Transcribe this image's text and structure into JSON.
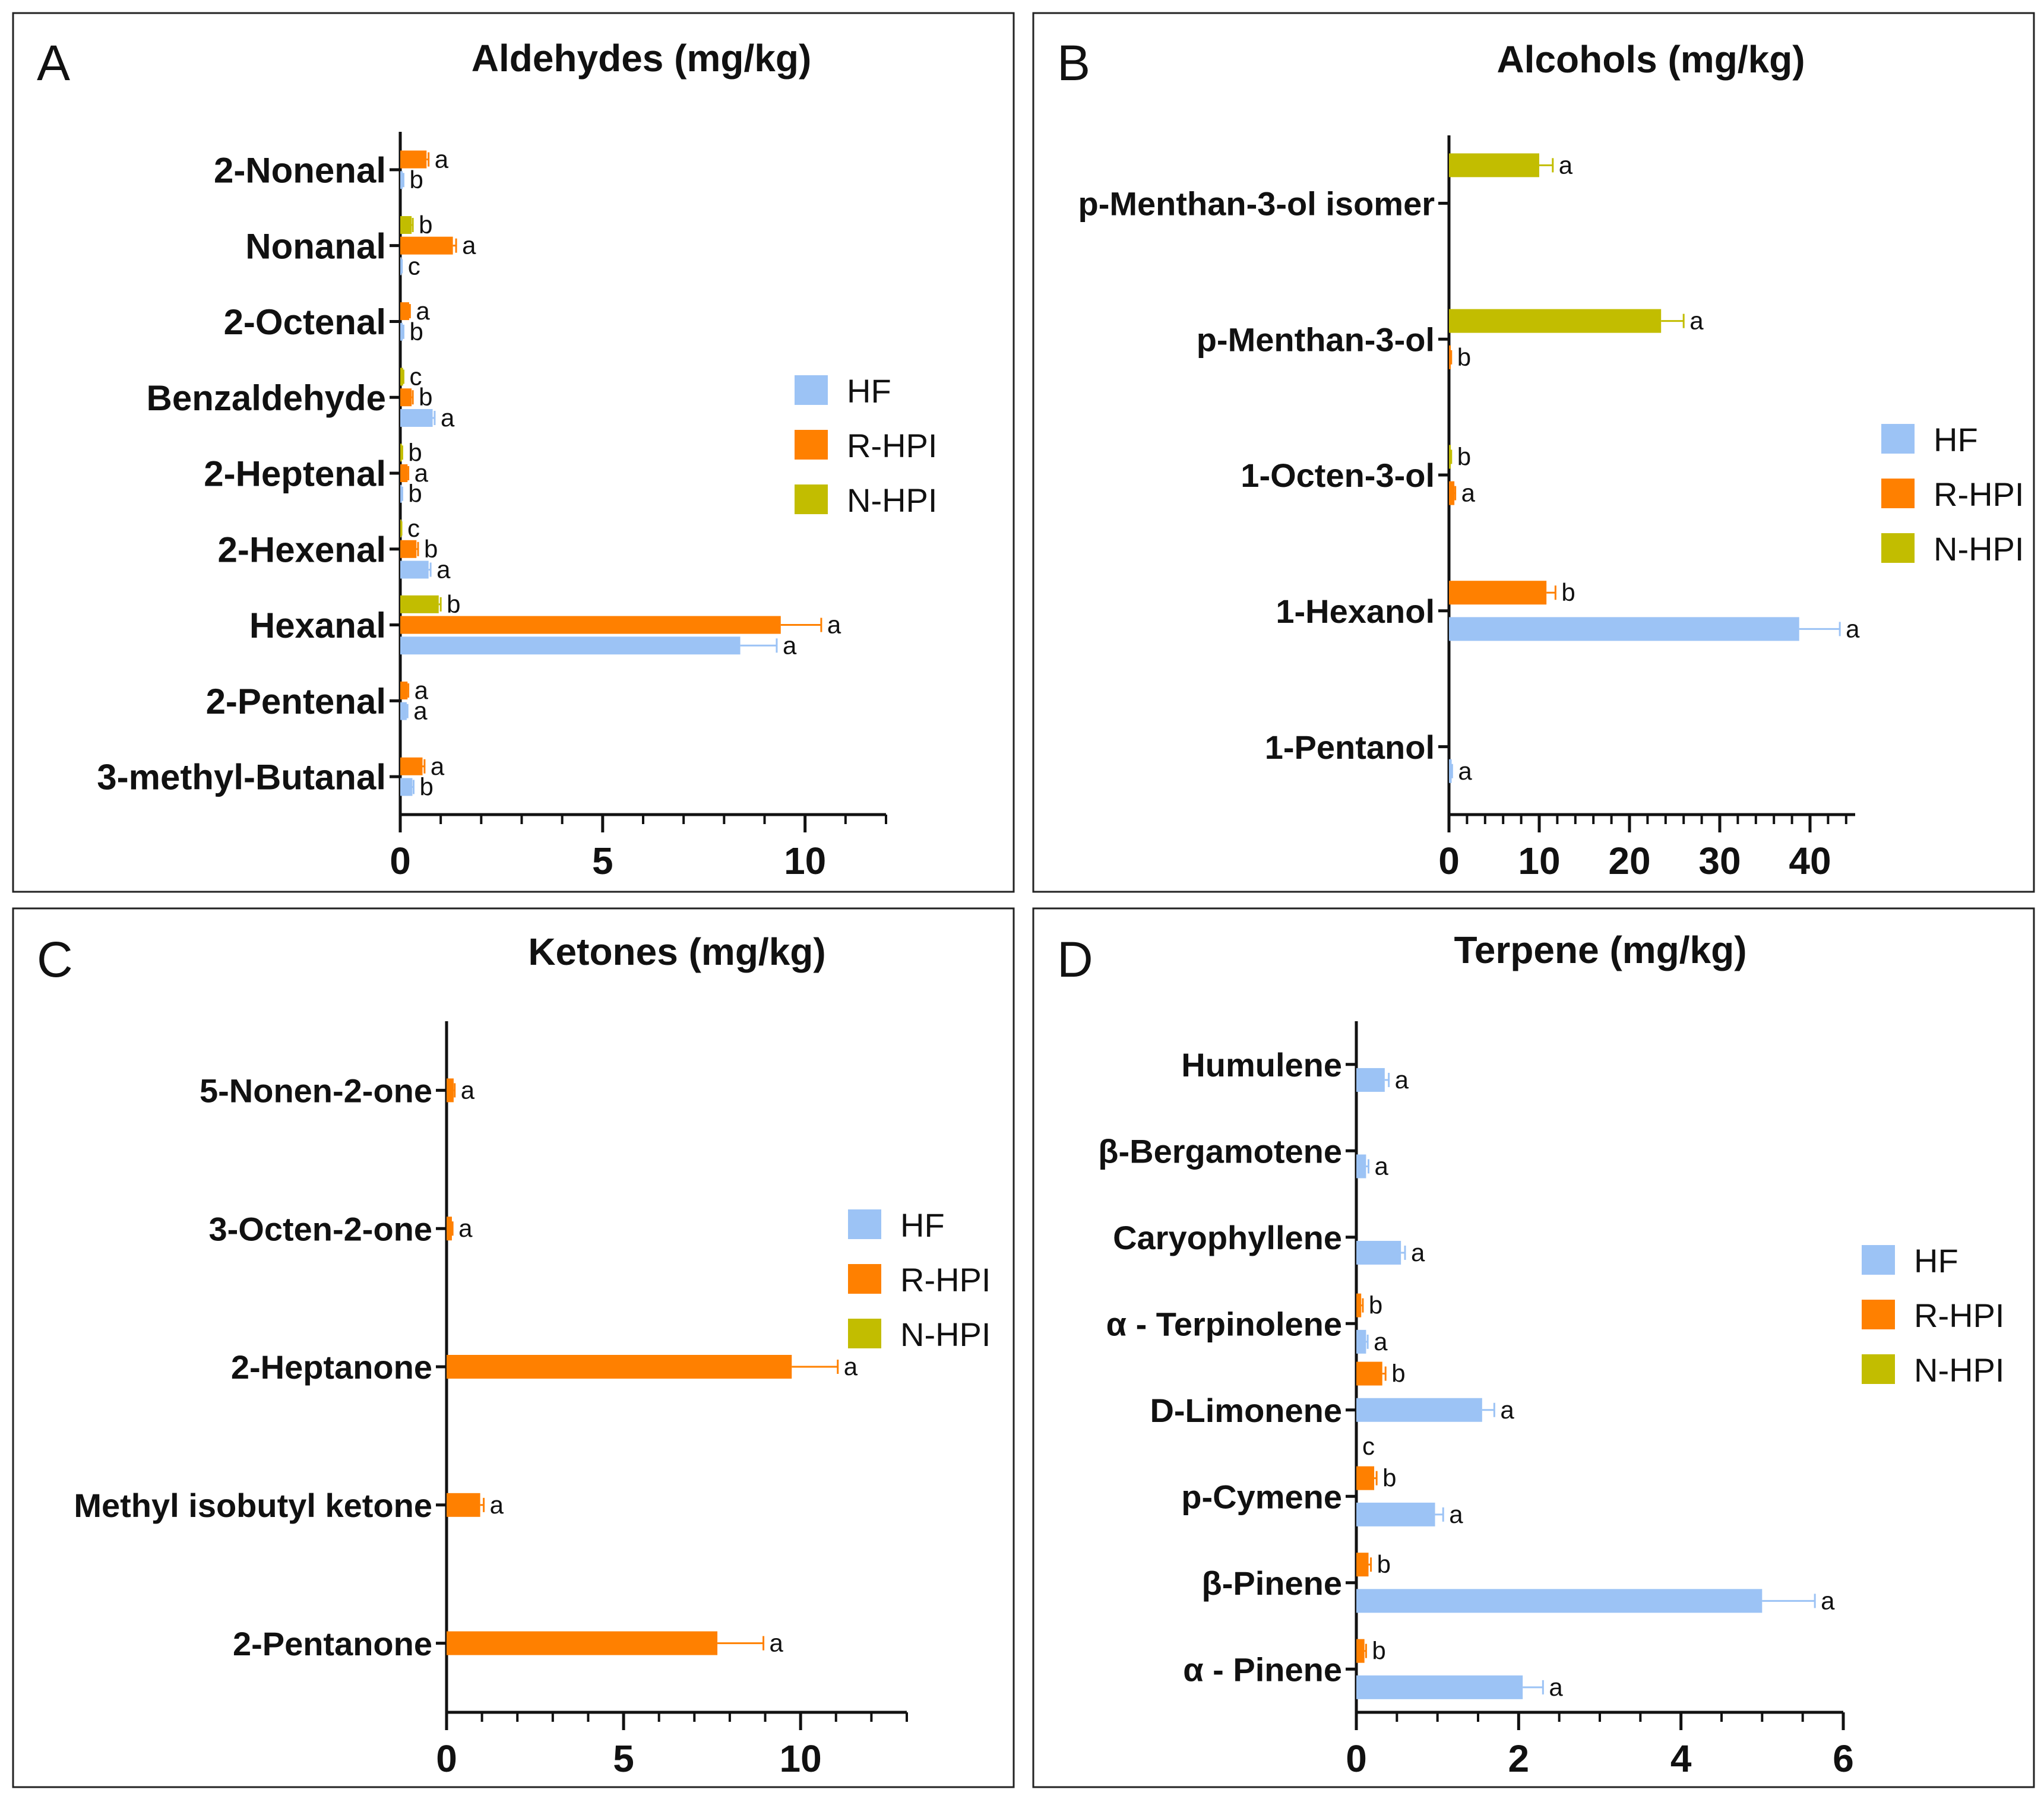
{
  "colors": {
    "HF": "#9cc3f5",
    "R-HPI": "#ff8000",
    "N-HPI": "#c2bd00"
  },
  "chart_data": [
    {
      "panel": "A",
      "type": "bar",
      "orientation": "horizontal",
      "title": "Aldehydes (mg/kg)",
      "series_names": [
        "HF",
        "R-HPI",
        "N-HPI"
      ],
      "xlim": [
        0,
        12
      ],
      "xticks": [
        0,
        5,
        10
      ],
      "minor_step": 1,
      "legend_position": "center-right",
      "categories": [
        {
          "name": "2-Nonenal",
          "bars": [
            {
              "series": "R-HPI",
              "value": 0.65,
              "err": 0.05,
              "label": "a"
            },
            {
              "series": "HF",
              "value": 0.06,
              "err": 0.02,
              "label": "b"
            }
          ]
        },
        {
          "name": "Nonanal",
          "bars": [
            {
              "series": "N-HPI",
              "value": 0.28,
              "err": 0.03,
              "label": "b"
            },
            {
              "series": "R-HPI",
              "value": 1.3,
              "err": 0.08,
              "label": "a"
            },
            {
              "series": "HF",
              "value": 0.03,
              "err": 0.01,
              "label": "c"
            }
          ]
        },
        {
          "name": "2-Octenal",
          "bars": [
            {
              "series": "R-HPI",
              "value": 0.22,
              "err": 0.02,
              "label": "a"
            },
            {
              "series": "HF",
              "value": 0.06,
              "err": 0.02,
              "label": "b"
            }
          ]
        },
        {
          "name": "Benzaldehyde",
          "bars": [
            {
              "series": "N-HPI",
              "value": 0.07,
              "err": 0.01,
              "label": "c"
            },
            {
              "series": "R-HPI",
              "value": 0.28,
              "err": 0.03,
              "label": "b"
            },
            {
              "series": "HF",
              "value": 0.8,
              "err": 0.05,
              "label": "a"
            }
          ]
        },
        {
          "name": "2-Heptenal",
          "bars": [
            {
              "series": "N-HPI",
              "value": 0.04,
              "err": 0.01,
              "label": "b"
            },
            {
              "series": "R-HPI",
              "value": 0.18,
              "err": 0.02,
              "label": "a"
            },
            {
              "series": "HF",
              "value": 0.04,
              "err": 0.01,
              "label": "b"
            }
          ]
        },
        {
          "name": "2-Hexenal",
          "bars": [
            {
              "series": "N-HPI",
              "value": 0.02,
              "err": 0.01,
              "label": "c"
            },
            {
              "series": "R-HPI",
              "value": 0.4,
              "err": 0.04,
              "label": "b"
            },
            {
              "series": "HF",
              "value": 0.7,
              "err": 0.05,
              "label": "a"
            }
          ]
        },
        {
          "name": "Hexanal",
          "bars": [
            {
              "series": "N-HPI",
              "value": 0.95,
              "err": 0.05,
              "label": "b"
            },
            {
              "series": "R-HPI",
              "value": 9.4,
              "err": 1.0,
              "label": "a"
            },
            {
              "series": "HF",
              "value": 8.4,
              "err": 0.9,
              "label": "a"
            }
          ]
        },
        {
          "name": "2-Pentenal",
          "bars": [
            {
              "series": "R-HPI",
              "value": 0.18,
              "err": 0.02,
              "label": "a"
            },
            {
              "series": "HF",
              "value": 0.16,
              "err": 0.02,
              "label": "a"
            }
          ]
        },
        {
          "name": "3-methyl-Butanal",
          "bars": [
            {
              "series": "R-HPI",
              "value": 0.55,
              "err": 0.05,
              "label": "a"
            },
            {
              "series": "HF",
              "value": 0.3,
              "err": 0.03,
              "label": "b"
            }
          ]
        }
      ]
    },
    {
      "panel": "B",
      "type": "bar",
      "orientation": "horizontal",
      "title": "Alcohols (mg/kg)",
      "series_names": [
        "HF",
        "R-HPI",
        "N-HPI"
      ],
      "xlim": [
        0,
        45
      ],
      "xticks": [
        0,
        10,
        20,
        30,
        40
      ],
      "minor_step": 2,
      "legend_position": "center-right",
      "categories": [
        {
          "name": "p-Menthan-3-ol isomer",
          "bars": [
            {
              "series": "N-HPI",
              "value": 10.0,
              "err": 1.5,
              "label": "a"
            }
          ]
        },
        {
          "name": "p-Menthan-3-ol",
          "bars": [
            {
              "series": "N-HPI",
              "value": 23.5,
              "err": 2.5,
              "label": "a"
            },
            {
              "series": "R-HPI",
              "value": 0.2,
              "err": 0.05,
              "label": "b"
            }
          ]
        },
        {
          "name": "1-Octen-3-ol",
          "bars": [
            {
              "series": "N-HPI",
              "value": 0.2,
              "err": 0.05,
              "label": "b"
            },
            {
              "series": "R-HPI",
              "value": 0.6,
              "err": 0.1,
              "label": "a"
            }
          ]
        },
        {
          "name": "1-Hexanol",
          "bars": [
            {
              "series": "R-HPI",
              "value": 10.8,
              "err": 1.0,
              "label": "b"
            },
            {
              "series": "HF",
              "value": 38.8,
              "err": 4.5,
              "label": "a"
            }
          ]
        },
        {
          "name": "1-Pentanol",
          "bars": [
            {
              "series": "HF",
              "value": 0.3,
              "err": 0.05,
              "label": "a"
            }
          ]
        }
      ]
    },
    {
      "panel": "C",
      "type": "bar",
      "orientation": "horizontal",
      "title": "Ketones (mg/kg)",
      "series_names": [
        "HF",
        "R-HPI",
        "N-HPI"
      ],
      "xlim": [
        0,
        13
      ],
      "xticks": [
        0,
        5,
        10
      ],
      "minor_step": 1,
      "legend_position": "center-right",
      "categories": [
        {
          "name": "5-Nonen-2-one",
          "bars": [
            {
              "series": "R-HPI",
              "value": 0.2,
              "err": 0.03,
              "label": "a"
            }
          ]
        },
        {
          "name": "3-Octen-2-one",
          "bars": [
            {
              "series": "R-HPI",
              "value": 0.15,
              "err": 0.02,
              "label": "a"
            }
          ]
        },
        {
          "name": "2-Heptanone",
          "bars": [
            {
              "series": "R-HPI",
              "value": 9.75,
              "err": 1.3,
              "label": "a"
            }
          ]
        },
        {
          "name": "Methyl isobutyl ketone",
          "bars": [
            {
              "series": "R-HPI",
              "value": 0.95,
              "err": 0.1,
              "label": "a"
            }
          ]
        },
        {
          "name": "2-Pentanone",
          "bars": [
            {
              "series": "R-HPI",
              "value": 7.65,
              "err": 1.3,
              "label": "a"
            }
          ]
        }
      ]
    },
    {
      "panel": "D",
      "type": "bar",
      "orientation": "horizontal",
      "title": "Terpene (mg/kg)",
      "series_names": [
        "HF",
        "R-HPI",
        "N-HPI"
      ],
      "xlim": [
        0,
        6
      ],
      "xticks": [
        0,
        2,
        4,
        6
      ],
      "minor_step": 0.5,
      "legend_position": "center-right",
      "categories": [
        {
          "name": "Humulene",
          "bars": [
            {
              "series": "HF",
              "value": 0.35,
              "err": 0.05,
              "label": "a"
            }
          ]
        },
        {
          "name": "β-Bergamotene",
          "bars": [
            {
              "series": "HF",
              "value": 0.12,
              "err": 0.03,
              "label": "a"
            }
          ]
        },
        {
          "name": "Caryophyllene",
          "bars": [
            {
              "series": "HF",
              "value": 0.55,
              "err": 0.05,
              "label": "a"
            }
          ]
        },
        {
          "name": "α - Terpinolene",
          "bars": [
            {
              "series": "R-HPI",
              "value": 0.06,
              "err": 0.02,
              "label": "b"
            },
            {
              "series": "HF",
              "value": 0.12,
              "err": 0.02,
              "label": "a"
            }
          ]
        },
        {
          "name": "D-Limonene",
          "bars": [
            {
              "series": "R-HPI",
              "value": 0.32,
              "err": 0.04,
              "label": "b"
            },
            {
              "series": "HF",
              "value": 1.55,
              "err": 0.15,
              "label": "a"
            },
            {
              "series": "N-HPI",
              "value": 0.0,
              "err": 0,
              "label": "c"
            }
          ]
        },
        {
          "name": "p-Cymene",
          "bars": [
            {
              "series": "R-HPI",
              "value": 0.22,
              "err": 0.03,
              "label": "b"
            },
            {
              "series": "HF",
              "value": 0.97,
              "err": 0.1,
              "label": "a"
            }
          ]
        },
        {
          "name": "β-Pinene",
          "bars": [
            {
              "series": "R-HPI",
              "value": 0.15,
              "err": 0.03,
              "label": "b"
            },
            {
              "series": "HF",
              "value": 5.0,
              "err": 0.65,
              "label": "a"
            }
          ]
        },
        {
          "name": "α - Pinene",
          "bars": [
            {
              "series": "R-HPI",
              "value": 0.1,
              "err": 0.02,
              "label": "b"
            },
            {
              "series": "HF",
              "value": 2.05,
              "err": 0.25,
              "label": "a"
            }
          ]
        }
      ]
    }
  ]
}
